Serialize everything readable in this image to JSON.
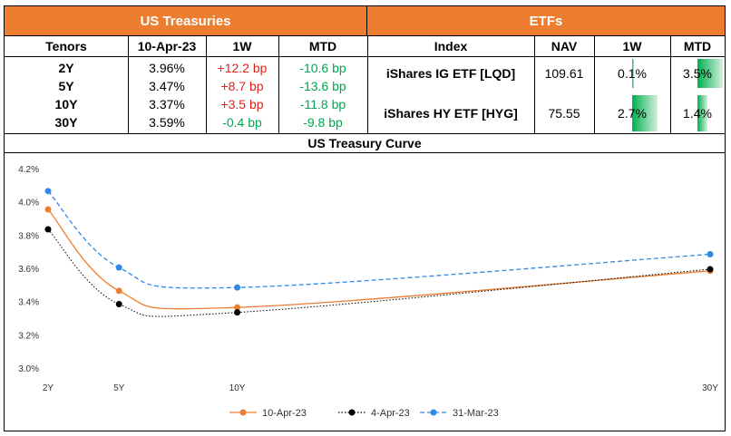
{
  "us_treasuries": {
    "title": "US Treasuries",
    "headers": [
      "Tenors",
      "10-Apr-23",
      "1W",
      "MTD"
    ],
    "rows": [
      {
        "tenor": "2Y",
        "yield": "3.96%",
        "w1": "+12.2 bp",
        "w1_dir": "up",
        "mtd": "-10.6 bp",
        "mtd_dir": "down"
      },
      {
        "tenor": "5Y",
        "yield": "3.47%",
        "w1": "+8.7 bp",
        "w1_dir": "up",
        "mtd": "-13.6 bp",
        "mtd_dir": "down"
      },
      {
        "tenor": "10Y",
        "yield": "3.37%",
        "w1": "+3.5 bp",
        "w1_dir": "up",
        "mtd": "-11.8 bp",
        "mtd_dir": "down"
      },
      {
        "tenor": "30Y",
        "yield": "3.59%",
        "w1": "-0.4 bp",
        "w1_dir": "down",
        "mtd": "-9.8 bp",
        "mtd_dir": "down"
      }
    ]
  },
  "etfs": {
    "title": "ETFs",
    "headers": [
      "Index",
      "NAV",
      "1W",
      "MTD"
    ],
    "rows": [
      {
        "index": "iShares IG ETF [LQD]",
        "nav": "109.61",
        "w1": "0.1%",
        "w1_value": 0.1,
        "mtd": "3.5%",
        "mtd_value": 3.5
      },
      {
        "index": "iShares HY ETF [HYG]",
        "nav": "75.55",
        "w1": "2.7%",
        "w1_value": 2.7,
        "mtd": "1.4%",
        "mtd_value": 1.4
      }
    ]
  },
  "colors": {
    "header_band": "#ed7d31",
    "up": "#e0201b",
    "down": "#00a651",
    "bar": "#00b050",
    "series_10apr": "#ed7d31",
    "series_4apr": "#000000",
    "series_31mar": "#2e8ae6"
  },
  "chart_data": {
    "type": "line",
    "title": "US Treasury Curve",
    "x": [
      "2Y",
      "5Y",
      "10Y",
      "30Y"
    ],
    "x_years": [
      2,
      5,
      10,
      30
    ],
    "y_ticks": [
      "3.0%",
      "3.2%",
      "3.4%",
      "3.6%",
      "3.8%",
      "4.0%",
      "4.2%"
    ],
    "ylim": [
      3.0,
      4.2
    ],
    "grid": false,
    "legend": "bottom",
    "series": [
      {
        "name": "10-Apr-23",
        "values": [
          3.96,
          3.47,
          3.37,
          3.59
        ],
        "style": "solid"
      },
      {
        "name": "4-Apr-23",
        "values": [
          3.84,
          3.39,
          3.34,
          3.6
        ],
        "style": "dotted"
      },
      {
        "name": "31-Mar-23",
        "values": [
          4.07,
          3.61,
          3.49,
          3.69
        ],
        "style": "dashed"
      }
    ]
  }
}
